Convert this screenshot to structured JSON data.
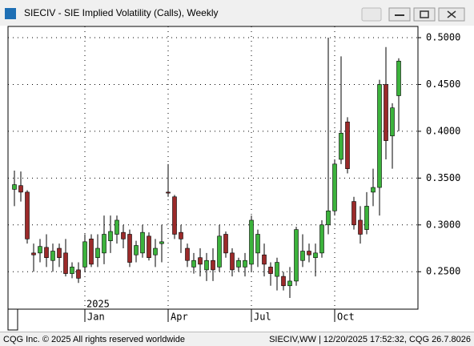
{
  "chart_data": {
    "type": "candlestick",
    "title": "SIECIV - SIE Implied Volatility (Calls), Weekly",
    "year_label": "2025",
    "footer_left": "CQG Inc. © 2025 All rights reserved worldwide",
    "footer_right": "SIECIV,WW | 12/20/2025 17:52:32, CQG 26.7.8026",
    "categories": [
      null,
      null,
      null,
      null,
      null,
      null,
      null,
      null,
      null,
      null,
      null,
      "Jan",
      null,
      null,
      null,
      null,
      null,
      null,
      null,
      null,
      null,
      null,
      null,
      null,
      "Apr",
      null,
      null,
      null,
      null,
      null,
      null,
      null,
      null,
      null,
      null,
      null,
      null,
      "Jul",
      null,
      null,
      null,
      null,
      null,
      null,
      null,
      null,
      null,
      null,
      null,
      null,
      "Oct",
      null,
      null,
      null,
      null,
      null,
      null,
      null,
      null,
      null,
      null
    ],
    "open": [
      0.338,
      0.342,
      0.335,
      0.27,
      0.27,
      0.276,
      0.262,
      0.275,
      0.27,
      0.248,
      0.252,
      0.255,
      0.285,
      0.265,
      0.27,
      0.283,
      0.29,
      0.292,
      0.29,
      0.268,
      0.27,
      0.288,
      0.268,
      0.28,
      0.335,
      0.33,
      0.292,
      0.275,
      0.255,
      0.265,
      0.252,
      0.262,
      0.255,
      0.29,
      0.27,
      0.255,
      0.255,
      0.258,
      0.27,
      0.268,
      0.255,
      0.245,
      0.245,
      0.235,
      0.24,
      0.262,
      0.272,
      0.265,
      0.27,
      0.3,
      0.315,
      0.37,
      0.41,
      0.325,
      0.305,
      0.295,
      0.335,
      0.34,
      0.45,
      0.395,
      0.438
    ],
    "high": [
      0.358,
      0.357,
      0.337,
      0.28,
      0.285,
      0.29,
      0.28,
      0.28,
      0.285,
      0.26,
      0.26,
      0.29,
      0.29,
      0.29,
      0.31,
      0.31,
      0.31,
      0.3,
      0.295,
      0.283,
      0.3,
      0.292,
      0.285,
      0.3,
      0.365,
      0.332,
      0.3,
      0.28,
      0.27,
      0.275,
      0.27,
      0.275,
      0.3,
      0.293,
      0.275,
      0.265,
      0.27,
      0.31,
      0.295,
      0.28,
      0.26,
      0.265,
      0.25,
      0.255,
      0.298,
      0.29,
      0.28,
      0.28,
      0.305,
      0.5,
      0.37,
      0.48,
      0.415,
      0.33,
      0.32,
      0.335,
      0.36,
      0.455,
      0.49,
      0.43,
      0.478
    ],
    "low": [
      0.32,
      0.325,
      0.28,
      0.25,
      0.26,
      0.255,
      0.25,
      0.255,
      0.245,
      0.243,
      0.238,
      0.25,
      0.255,
      0.255,
      0.258,
      0.27,
      0.28,
      0.275,
      0.255,
      0.26,
      0.265,
      0.262,
      0.255,
      0.26,
      0.33,
      0.285,
      0.27,
      0.255,
      0.248,
      0.245,
      0.24,
      0.24,
      0.25,
      0.265,
      0.245,
      0.25,
      0.245,
      0.25,
      0.255,
      0.245,
      0.235,
      0.23,
      0.23,
      0.222,
      0.235,
      0.255,
      0.26,
      0.245,
      0.265,
      0.29,
      0.31,
      0.365,
      0.355,
      0.295,
      0.28,
      0.29,
      0.32,
      0.31,
      0.37,
      0.36,
      0.4
    ],
    "close": [
      0.343,
      0.335,
      0.285,
      0.268,
      0.277,
      0.265,
      0.272,
      0.265,
      0.248,
      0.255,
      0.243,
      0.282,
      0.258,
      0.275,
      0.29,
      0.293,
      0.305,
      0.285,
      0.26,
      0.278,
      0.292,
      0.265,
      0.275,
      0.282,
      0.334,
      0.29,
      0.285,
      0.262,
      0.262,
      0.258,
      0.262,
      0.252,
      0.288,
      0.27,
      0.252,
      0.262,
      0.262,
      0.305,
      0.29,
      0.258,
      0.248,
      0.26,
      0.235,
      0.24,
      0.295,
      0.272,
      0.268,
      0.27,
      0.3,
      0.315,
      0.365,
      0.398,
      0.36,
      0.3,
      0.29,
      0.32,
      0.34,
      0.45,
      0.39,
      0.425,
      0.475
    ],
    "up_color": "#3cb33c",
    "down_color": "#9b2a2a",
    "ylim": [
      0.21,
      0.512
    ],
    "yticks": [
      {
        "value": 0.25,
        "label": "0.2500"
      },
      {
        "value": 0.3,
        "label": "0.3000"
      },
      {
        "value": 0.35,
        "label": "0.3500"
      },
      {
        "value": 0.4,
        "label": "0.4000"
      },
      {
        "value": 0.45,
        "label": "0.4500"
      },
      {
        "value": 0.5,
        "label": "0.5000"
      }
    ],
    "grid": true
  }
}
